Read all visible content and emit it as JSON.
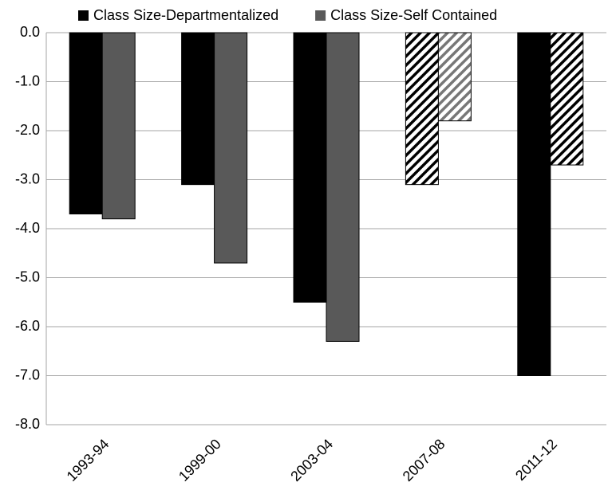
{
  "chart_data": {
    "type": "bar",
    "categories": [
      "1993-94",
      "1999-00",
      "2003-04",
      "2007-08",
      "2011-12"
    ],
    "series": [
      {
        "name": "Class Size-Departmentalized",
        "color": "#000000",
        "values": [
          -3.7,
          -3.1,
          -5.5,
          -3.1,
          -7.0
        ],
        "hatch": [
          null,
          null,
          null,
          "#000000",
          null
        ]
      },
      {
        "name": "Class Size-Self Contained",
        "color": "#595959",
        "values": [
          -3.8,
          -4.7,
          -6.3,
          -1.8,
          -2.7
        ],
        "hatch": [
          null,
          null,
          null,
          "#777777",
          "#000000"
        ]
      }
    ],
    "ylim": [
      -8,
      0
    ],
    "yticks": [
      {
        "value": 0,
        "label": "0.0"
      },
      {
        "value": -1,
        "label": "-1.0"
      },
      {
        "value": -2,
        "label": "-2.0"
      },
      {
        "value": -3,
        "label": "-3.0"
      },
      {
        "value": -4,
        "label": "-4.0"
      },
      {
        "value": -5,
        "label": "-5.0"
      },
      {
        "value": -6,
        "label": "-6.0"
      },
      {
        "value": -7,
        "label": "-7.0"
      },
      {
        "value": -8,
        "label": "-8.0"
      }
    ],
    "grid": true
  }
}
